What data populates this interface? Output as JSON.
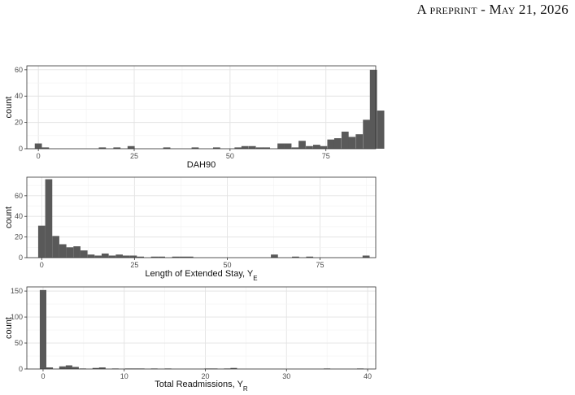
{
  "header": {
    "text": "A preprint - May 21, 2026"
  },
  "chart_data": [
    {
      "type": "bar",
      "xlabel": "DAH90",
      "xlabel_sub": "",
      "ylabel": "count",
      "xlim": [
        -3,
        88
      ],
      "ylim": [
        0,
        63
      ],
      "xticks": [
        0,
        25,
        50,
        75
      ],
      "yticks": [
        0,
        20,
        40,
        60
      ],
      "grid": true,
      "binwidth": 1.86,
      "bars": [
        {
          "x": 0,
          "count": 4
        },
        {
          "x": 1.86,
          "count": 1
        },
        {
          "x": 16.7,
          "count": 1
        },
        {
          "x": 20.5,
          "count": 1
        },
        {
          "x": 24.2,
          "count": 2
        },
        {
          "x": 33.5,
          "count": 1
        },
        {
          "x": 40.9,
          "count": 1
        },
        {
          "x": 46.5,
          "count": 1
        },
        {
          "x": 52.1,
          "count": 1
        },
        {
          "x": 53.9,
          "count": 2
        },
        {
          "x": 55.8,
          "count": 2
        },
        {
          "x": 57.7,
          "count": 1
        },
        {
          "x": 59.5,
          "count": 1
        },
        {
          "x": 63.3,
          "count": 4
        },
        {
          "x": 65.1,
          "count": 4
        },
        {
          "x": 67.0,
          "count": 1
        },
        {
          "x": 68.8,
          "count": 6
        },
        {
          "x": 70.7,
          "count": 2
        },
        {
          "x": 72.6,
          "count": 3
        },
        {
          "x": 74.4,
          "count": 2
        },
        {
          "x": 76.3,
          "count": 7
        },
        {
          "x": 78.1,
          "count": 8
        },
        {
          "x": 80.0,
          "count": 13
        },
        {
          "x": 81.8,
          "count": 9
        },
        {
          "x": 83.7,
          "count": 11
        },
        {
          "x": 85.6,
          "count": 22
        },
        {
          "x": 87.4,
          "count": 60
        },
        {
          "x": 89.3,
          "count": 29
        }
      ]
    },
    {
      "type": "bar",
      "xlabel": "Length of Extended Stay, Y",
      "xlabel_sub": "E",
      "ylabel": "count",
      "xlim": [
        -4,
        90
      ],
      "ylim": [
        0,
        78
      ],
      "xticks": [
        0,
        25,
        50,
        75
      ],
      "yticks": [
        0,
        20,
        40,
        60
      ],
      "grid": true,
      "binwidth": 1.9,
      "bars": [
        {
          "x": 0,
          "count": 31
        },
        {
          "x": 1.9,
          "count": 76
        },
        {
          "x": 3.8,
          "count": 21
        },
        {
          "x": 5.7,
          "count": 13
        },
        {
          "x": 7.6,
          "count": 10
        },
        {
          "x": 9.5,
          "count": 11
        },
        {
          "x": 11.4,
          "count": 7
        },
        {
          "x": 13.3,
          "count": 3
        },
        {
          "x": 15.2,
          "count": 2
        },
        {
          "x": 17.1,
          "count": 4
        },
        {
          "x": 19.0,
          "count": 2
        },
        {
          "x": 20.9,
          "count": 3
        },
        {
          "x": 22.8,
          "count": 2
        },
        {
          "x": 24.7,
          "count": 2
        },
        {
          "x": 26.6,
          "count": 1
        },
        {
          "x": 30.4,
          "count": 1
        },
        {
          "x": 32.3,
          "count": 1
        },
        {
          "x": 36.1,
          "count": 1
        },
        {
          "x": 38.0,
          "count": 1
        },
        {
          "x": 39.9,
          "count": 1
        },
        {
          "x": 62.7,
          "count": 3
        },
        {
          "x": 68.4,
          "count": 1
        },
        {
          "x": 72.2,
          "count": 1
        },
        {
          "x": 87.4,
          "count": 2
        }
      ]
    },
    {
      "type": "bar",
      "xlabel": "Total Readmissions, Y",
      "xlabel_sub": "R",
      "ylabel": "count",
      "xlim": [
        -2,
        41
      ],
      "ylim": [
        0,
        158
      ],
      "xticks": [
        0,
        10,
        20,
        30,
        40
      ],
      "yticks": [
        0,
        50,
        100,
        150
      ],
      "grid": true,
      "binwidth": 0.81,
      "bars": [
        {
          "x": 0,
          "count": 152
        },
        {
          "x": 0.81,
          "count": 3
        },
        {
          "x": 2.4,
          "count": 5
        },
        {
          "x": 3.2,
          "count": 7
        },
        {
          "x": 4.0,
          "count": 4
        },
        {
          "x": 4.9,
          "count": 1
        },
        {
          "x": 6.5,
          "count": 2
        },
        {
          "x": 7.3,
          "count": 3
        },
        {
          "x": 8.9,
          "count": 1
        },
        {
          "x": 10.5,
          "count": 1
        },
        {
          "x": 11.3,
          "count": 1
        },
        {
          "x": 12.1,
          "count": 1
        },
        {
          "x": 13.7,
          "count": 1
        },
        {
          "x": 15.4,
          "count": 1
        },
        {
          "x": 20.3,
          "count": 1
        },
        {
          "x": 21.1,
          "count": 1
        },
        {
          "x": 22.7,
          "count": 1
        },
        {
          "x": 23.5,
          "count": 2
        },
        {
          "x": 35.0,
          "count": 1
        },
        {
          "x": 39.1,
          "count": 1
        }
      ]
    }
  ]
}
